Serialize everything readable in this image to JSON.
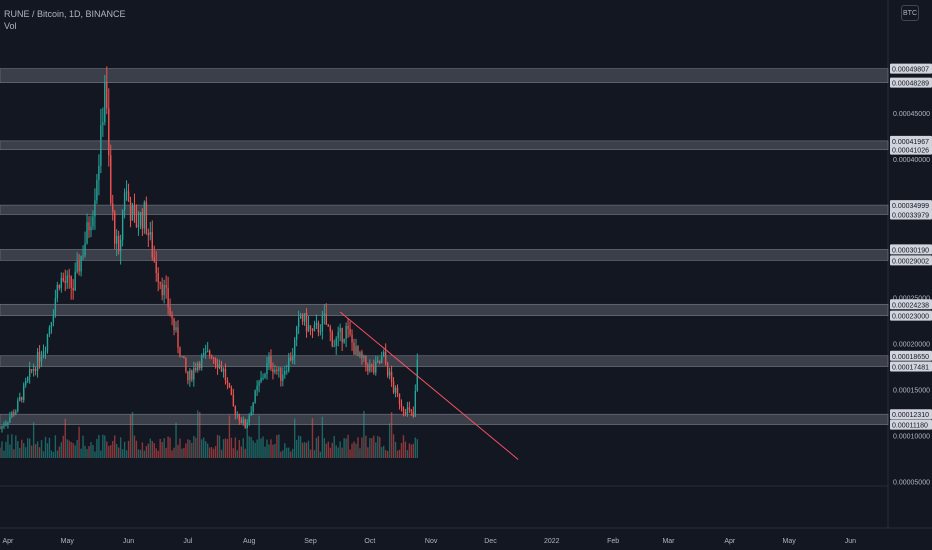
{
  "header": {
    "title": "RUNE / Bitcoin, 1D, BINANCE",
    "volume_label": "Vol",
    "currency_button": "BTC"
  },
  "colors": {
    "background": "#131722",
    "up": "#26a69a",
    "down": "#ef5350",
    "zone_fill": "#434651",
    "zone_border": "#787b86",
    "trendline": "#f7525f",
    "axis_text": "#b2b5be"
  },
  "chart_data": {
    "type": "candlestick",
    "symbol": "RUNE / Bitcoin",
    "interval": "1D",
    "exchange": "BINANCE",
    "x_tick_labels": [
      "Apr",
      "May",
      "Jun",
      "Jul",
      "Aug",
      "Sep",
      "Oct",
      "Nov",
      "Dec",
      "2022",
      "Feb",
      "Mar",
      "Apr",
      "May",
      "Jun"
    ],
    "y_tick_labels": [
      "0.00045000",
      "0.00040000",
      "0.00025000",
      "0.00020000",
      "0.00015000",
      "0.00010000",
      "0.00005000"
    ],
    "y_tick_values": [
      0.00045,
      0.0004,
      0.00025,
      0.0002,
      0.00015,
      0.0001,
      5e-05
    ],
    "ylim": [
      3e-05,
      0.00054
    ],
    "date_range": [
      "2021-03-28",
      "2022-06-20"
    ],
    "zones": [
      {
        "high": 0.00049807,
        "low": 0.00048289,
        "labels": [
          "0.00049807",
          "0.00048289"
        ]
      },
      {
        "high": 0.00041967,
        "low": 0.00041026,
        "labels": [
          "0.00041967",
          "0.00041026"
        ]
      },
      {
        "high": 0.00034999,
        "low": 0.00033979,
        "labels": [
          "0.00034999",
          "0.00033979"
        ]
      },
      {
        "high": 0.0003019,
        "low": 0.00029002,
        "labels": [
          "0.00030190",
          "0.00029002"
        ]
      },
      {
        "high": 0.00024238,
        "low": 0.00023,
        "labels": [
          "0.00024238",
          "0.00023000"
        ]
      },
      {
        "high": 0.0001865,
        "low": 0.00017481,
        "labels": [
          "0.00018650",
          "0.00017481"
        ]
      },
      {
        "high": 0.0001231,
        "low": 0.0001118,
        "labels": [
          "0.00012310",
          "0.00011180"
        ]
      }
    ],
    "trendline": {
      "start": [
        "2021-09-16",
        0.000234
      ],
      "end": [
        "2021-12-15",
        7.4e-05
      ]
    },
    "price_path": [
      [
        "2021-03-28",
        0.000108
      ],
      [
        "2021-04-05",
        0.000128
      ],
      [
        "2021-04-12",
        0.000165
      ],
      [
        "2021-04-20",
        0.0002
      ],
      [
        "2021-04-27",
        0.00027
      ],
      [
        "2021-05-04",
        0.00026
      ],
      [
        "2021-05-11",
        0.00032
      ],
      [
        "2021-05-14",
        0.00035
      ],
      [
        "2021-05-18",
        0.00042
      ],
      [
        "2021-05-20",
        0.00049
      ],
      [
        "2021-05-23",
        0.00035
      ],
      [
        "2021-05-27",
        0.00029
      ],
      [
        "2021-05-30",
        0.00037
      ],
      [
        "2021-06-04",
        0.00033
      ],
      [
        "2021-06-09",
        0.00034
      ],
      [
        "2021-06-14",
        0.00029
      ],
      [
        "2021-06-20",
        0.00025
      ],
      [
        "2021-06-26",
        0.0002
      ],
      [
        "2021-07-01",
        0.00016
      ],
      [
        "2021-07-06",
        0.00018
      ],
      [
        "2021-07-13",
        0.00019
      ],
      [
        "2021-07-19",
        0.00017
      ],
      [
        "2021-07-24",
        0.00013
      ],
      [
        "2021-07-30",
        0.00011
      ],
      [
        "2021-08-05",
        0.00015
      ],
      [
        "2021-08-11",
        0.00018
      ],
      [
        "2021-08-17",
        0.000165
      ],
      [
        "2021-08-23",
        0.00019
      ],
      [
        "2021-08-27",
        0.00023
      ],
      [
        "2021-09-02",
        0.00021
      ],
      [
        "2021-09-08",
        0.000225
      ],
      [
        "2021-09-13",
        0.0002
      ],
      [
        "2021-09-19",
        0.000215
      ],
      [
        "2021-09-25",
        0.000185
      ],
      [
        "2021-10-03",
        0.00017
      ],
      [
        "2021-10-08",
        0.000185
      ],
      [
        "2021-10-13",
        0.00015
      ],
      [
        "2021-10-18",
        0.00013
      ],
      [
        "2021-10-20",
        0.000128
      ],
      [
        "2021-10-23",
        0.00012
      ],
      [
        "2021-10-24",
        0.000145
      ],
      [
        "2021-10-25",
        0.00018
      ]
    ]
  }
}
